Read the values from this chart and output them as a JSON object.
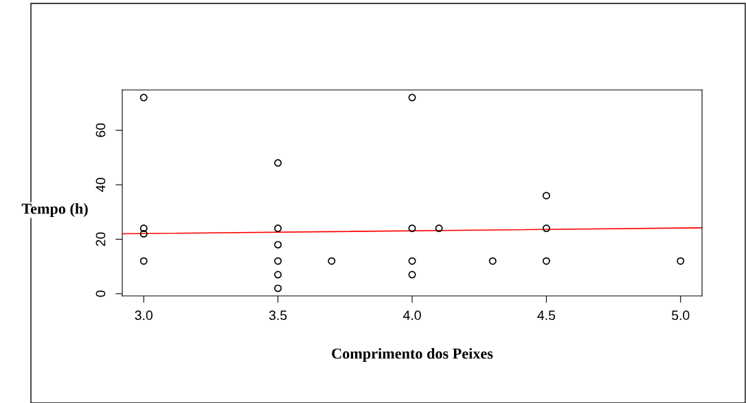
{
  "chart_data": {
    "type": "scatter",
    "xlabel": "Comprimento dos Peixes",
    "ylabel": "Tempo (h)",
    "series": [
      {
        "color": "#000000",
        "marker": "circle",
        "x": [
          3.0,
          3.0,
          3.0,
          3.0,
          3.5,
          3.5,
          3.5,
          3.5,
          3.5,
          3.5,
          3.7,
          4.0,
          4.0,
          4.0,
          4.0,
          4.1,
          4.3,
          4.5,
          4.5,
          4.5,
          5.0
        ],
        "values": [
          72,
          24,
          22,
          12,
          48,
          24,
          18,
          12,
          7,
          2,
          12,
          72,
          24,
          12,
          7,
          24,
          12,
          36,
          24,
          12,
          12
        ]
      },
      {
        "type": "line",
        "color": "#ff0000",
        "x": [
          2.92,
          5.08
        ],
        "values": [
          22,
          24.2
        ]
      }
    ],
    "xlim": [
      2.92,
      5.08
    ],
    "xticks": [
      {
        "value": 3,
        "label": "3.0"
      },
      {
        "value": 3.5,
        "label": "3.5"
      },
      {
        "value": 4,
        "label": "4.0"
      },
      {
        "value": 4.5,
        "label": "4.5"
      },
      {
        "value": 5,
        "label": "5.0"
      }
    ],
    "ylim": [
      -0.8,
      74.8
    ],
    "yticks": [
      0,
      20,
      40,
      60
    ],
    "grid": false,
    "legend": false
  }
}
